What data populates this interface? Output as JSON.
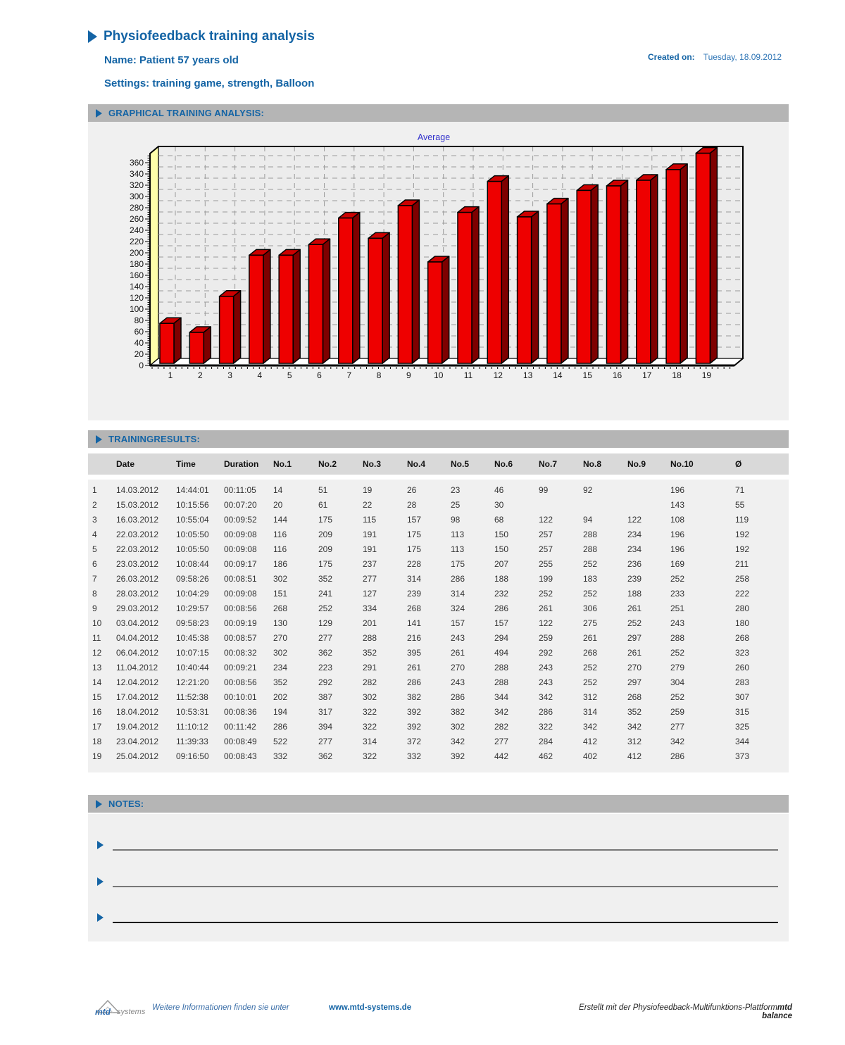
{
  "header": {
    "title": "Physiofeedback training analysis",
    "name_line": "Name: Patient 57 years old",
    "settings_line": "Settings: training game, strength, Balloon",
    "created_on_label": "Created on:",
    "created_on_value": "Tuesday, 18.09.2012"
  },
  "sections": {
    "chart_title_bar": "GRAPHICAL TRAINING ANALYSIS:",
    "table_title_bar": "TRAININGRESULTS:",
    "notes_title_bar": "NOTES:"
  },
  "chart_data": {
    "type": "bar",
    "title": "Average",
    "title_color": "#3333cc",
    "categories": [
      "1",
      "2",
      "3",
      "4",
      "5",
      "6",
      "7",
      "8",
      "9",
      "10",
      "11",
      "12",
      "13",
      "14",
      "15",
      "16",
      "17",
      "18",
      "19"
    ],
    "values": [
      71,
      55,
      119,
      192,
      192,
      211,
      258,
      222,
      280,
      180,
      268,
      323,
      260,
      283,
      307,
      315,
      325,
      344,
      373
    ],
    "xlabel": "",
    "ylabel": "",
    "ylim": [
      0,
      376
    ],
    "ytick_step": 20,
    "grid": true,
    "legend_position": "none",
    "style_3d": true,
    "bar_color": "#ee0000",
    "bar_side_color": "#7e0000",
    "bar_top_color": "#cc0000",
    "wall_color": "#ffffaa",
    "floor_color": "#ffffff",
    "plot_bg": "#ececec",
    "grid_color": "#9a9a9a"
  },
  "table": {
    "columns": [
      "Date",
      "Time",
      "Duration",
      "No.1",
      "No.2",
      "No.3",
      "No.4",
      "No.5",
      "No.6",
      "No.7",
      "No.8",
      "No.9",
      "No.10",
      "Ø"
    ],
    "rows": [
      {
        "num": "1",
        "date": "14.03.2012",
        "time": "14:44:01",
        "duration": "00:11:05",
        "values": [
          "14",
          "51",
          "19",
          "26",
          "23",
          "46",
          "99",
          "92",
          "",
          "196"
        ],
        "avg": "71"
      },
      {
        "num": "2",
        "date": "15.03.2012",
        "time": "10:15:56",
        "duration": "00:07:20",
        "values": [
          "20",
          "61",
          "22",
          "28",
          "25",
          "30",
          "",
          "",
          "",
          "143"
        ],
        "avg": "55"
      },
      {
        "num": "3",
        "date": "16.03.2012",
        "time": "10:55:04",
        "duration": "00:09:52",
        "values": [
          "144",
          "175",
          "115",
          "157",
          "98",
          "68",
          "122",
          "94",
          "122",
          "108"
        ],
        "avg": "119"
      },
      {
        "num": "4",
        "date": "22.03.2012",
        "time": "10:05:50",
        "duration": "00:09:08",
        "values": [
          "116",
          "209",
          "191",
          "175",
          "113",
          "150",
          "257",
          "288",
          "234",
          "196"
        ],
        "avg": "192"
      },
      {
        "num": "5",
        "date": "22.03.2012",
        "time": "10:05:50",
        "duration": "00:09:08",
        "values": [
          "116",
          "209",
          "191",
          "175",
          "113",
          "150",
          "257",
          "288",
          "234",
          "196"
        ],
        "avg": "192"
      },
      {
        "num": "6",
        "date": "23.03.2012",
        "time": "10:08:44",
        "duration": "00:09:17",
        "values": [
          "186",
          "175",
          "237",
          "228",
          "175",
          "207",
          "255",
          "252",
          "236",
          "169"
        ],
        "avg": "211"
      },
      {
        "num": "7",
        "date": "26.03.2012",
        "time": "09:58:26",
        "duration": "00:08:51",
        "values": [
          "302",
          "352",
          "277",
          "314",
          "286",
          "188",
          "199",
          "183",
          "239",
          "252"
        ],
        "avg": "258"
      },
      {
        "num": "8",
        "date": "28.03.2012",
        "time": "10:04:29",
        "duration": "00:09:08",
        "values": [
          "151",
          "241",
          "127",
          "239",
          "314",
          "232",
          "252",
          "252",
          "188",
          "233"
        ],
        "avg": "222"
      },
      {
        "num": "9",
        "date": "29.03.2012",
        "time": "10:29:57",
        "duration": "00:08:56",
        "values": [
          "268",
          "252",
          "334",
          "268",
          "324",
          "286",
          "261",
          "306",
          "261",
          "251"
        ],
        "avg": "280"
      },
      {
        "num": "10",
        "date": "03.04.2012",
        "time": "09:58:23",
        "duration": "00:09:19",
        "values": [
          "130",
          "129",
          "201",
          "141",
          "157",
          "157",
          "122",
          "275",
          "252",
          "243"
        ],
        "avg": "180"
      },
      {
        "num": "11",
        "date": "04.04.2012",
        "time": "10:45:38",
        "duration": "00:08:57",
        "values": [
          "270",
          "277",
          "288",
          "216",
          "243",
          "294",
          "259",
          "261",
          "297",
          "288"
        ],
        "avg": "268"
      },
      {
        "num": "12",
        "date": "06.04.2012",
        "time": "10:07:15",
        "duration": "00:08:32",
        "values": [
          "302",
          "362",
          "352",
          "395",
          "261",
          "494",
          "292",
          "268",
          "261",
          "252"
        ],
        "avg": "323"
      },
      {
        "num": "13",
        "date": "11.04.2012",
        "time": "10:40:44",
        "duration": "00:09:21",
        "values": [
          "234",
          "223",
          "291",
          "261",
          "270",
          "288",
          "243",
          "252",
          "270",
          "279"
        ],
        "avg": "260"
      },
      {
        "num": "14",
        "date": "12.04.2012",
        "time": "12:21:20",
        "duration": "00:08:56",
        "values": [
          "352",
          "292",
          "282",
          "286",
          "243",
          "288",
          "243",
          "252",
          "297",
          "304"
        ],
        "avg": "283"
      },
      {
        "num": "15",
        "date": "17.04.2012",
        "time": "11:52:38",
        "duration": "00:10:01",
        "values": [
          "202",
          "387",
          "302",
          "382",
          "286",
          "344",
          "342",
          "312",
          "268",
          "252"
        ],
        "avg": "307"
      },
      {
        "num": "16",
        "date": "18.04.2012",
        "time": "10:53:31",
        "duration": "00:08:36",
        "values": [
          "194",
          "317",
          "322",
          "392",
          "382",
          "342",
          "286",
          "314",
          "352",
          "259"
        ],
        "avg": "315"
      },
      {
        "num": "17",
        "date": "19.04.2012",
        "time": "11:10:12",
        "duration": "00:11:42",
        "values": [
          "286",
          "394",
          "322",
          "392",
          "302",
          "282",
          "322",
          "342",
          "342",
          "277"
        ],
        "avg": "325"
      },
      {
        "num": "18",
        "date": "23.04.2012",
        "time": "11:39:33",
        "duration": "00:08:49",
        "values": [
          "522",
          "277",
          "314",
          "372",
          "342",
          "277",
          "284",
          "412",
          "312",
          "342"
        ],
        "avg": "344"
      },
      {
        "num": "19",
        "date": "25.04.2012",
        "time": "09:16:50",
        "duration": "00:08:43",
        "values": [
          "332",
          "362",
          "322",
          "332",
          "392",
          "442",
          "462",
          "402",
          "412",
          "286"
        ],
        "avg": "373"
      }
    ]
  },
  "notes": {
    "lines": [
      "",
      "",
      ""
    ]
  },
  "footer": {
    "logo_mtd": "mtd",
    "logo_systems": "systems",
    "info_text": "Weitere Informationen finden sie unter",
    "url": "www.mtd-systems.de",
    "made_with": "Erstellt mit der Physiofeedback-Multifunktions-Plattform",
    "made_with_bold": "mtd balance"
  }
}
